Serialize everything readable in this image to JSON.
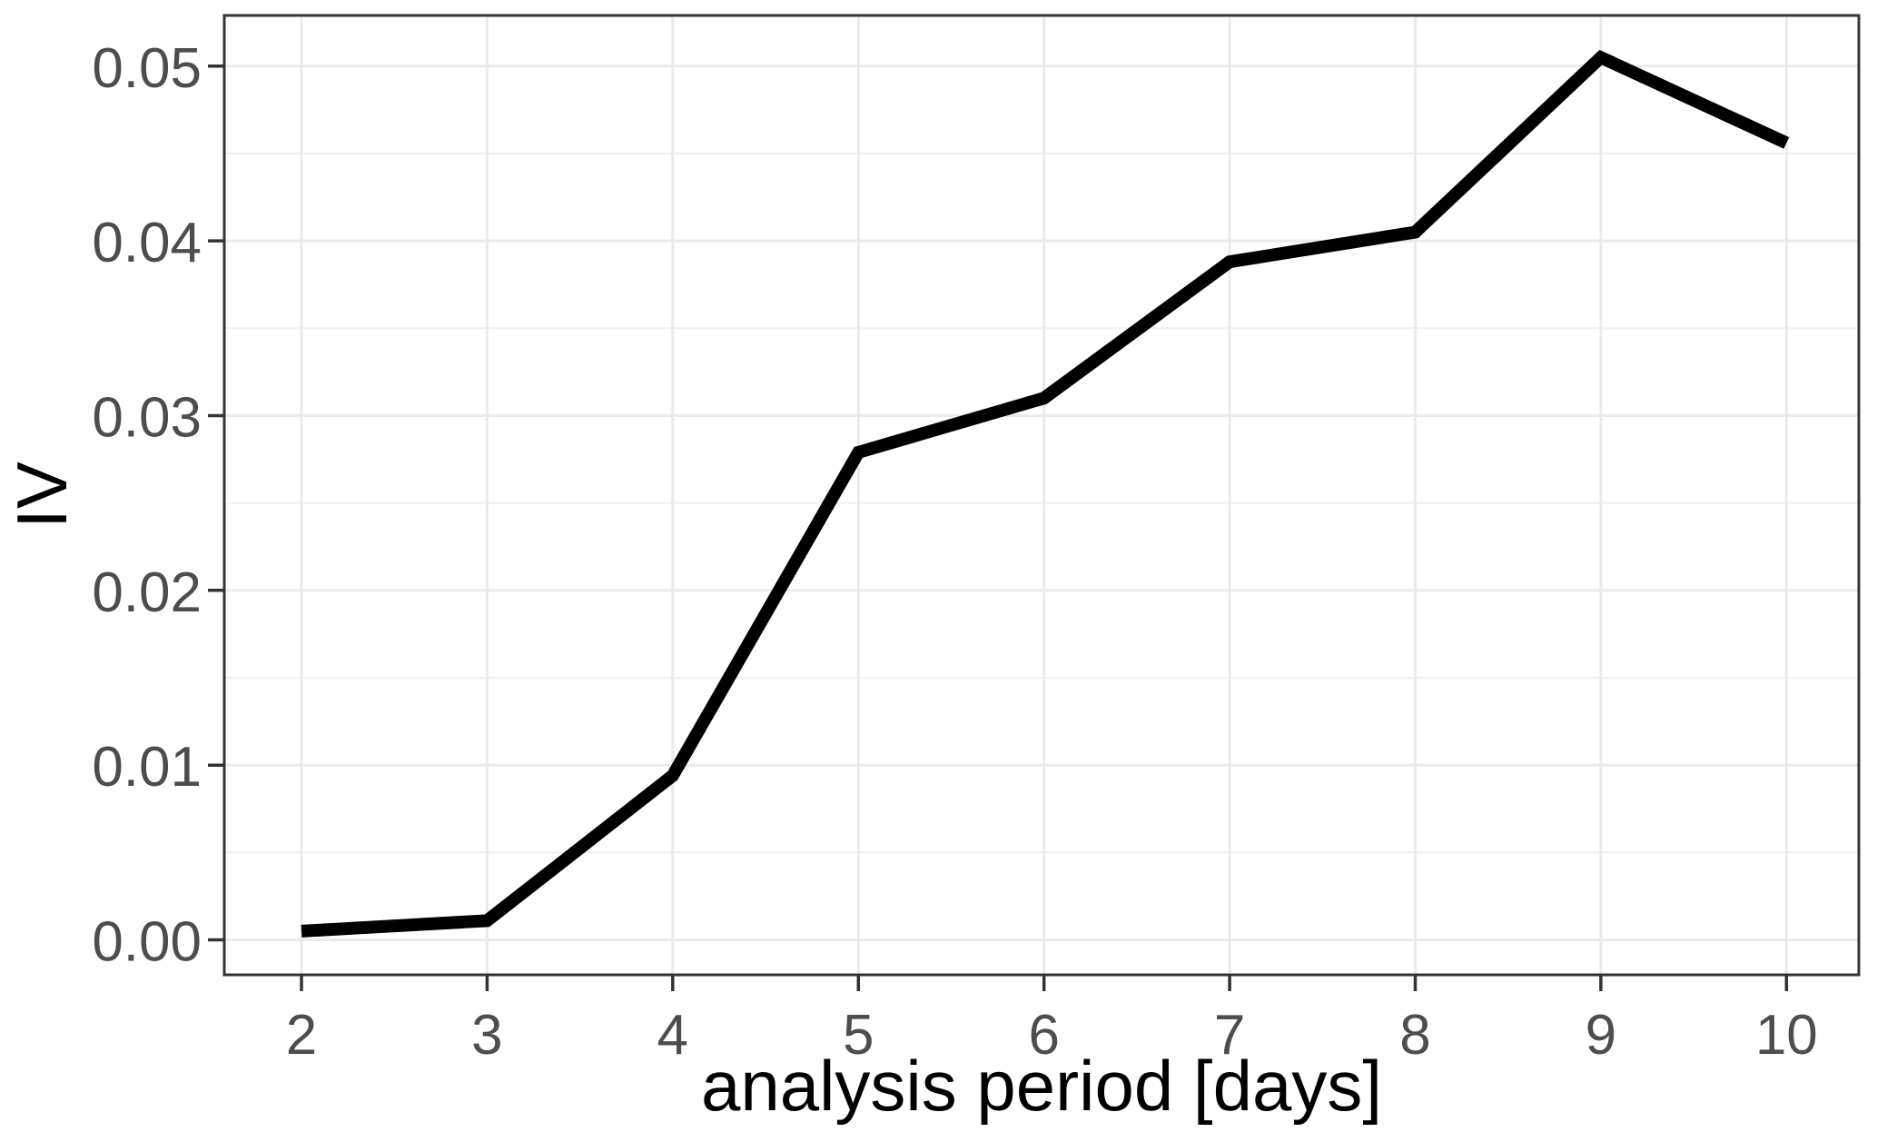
{
  "chart_data": {
    "type": "line",
    "title": "",
    "xlabel": "analysis period [days]",
    "ylabel": "IV",
    "x": [
      2,
      3,
      4,
      5,
      6,
      7,
      8,
      9,
      10
    ],
    "series": [
      {
        "name": "IV",
        "values": [
          0.0005,
          0.0011,
          0.0094,
          0.0279,
          0.031,
          0.0388,
          0.0405,
          0.0505,
          0.0456
        ]
      }
    ],
    "xlim": [
      1.584,
      10.39
    ],
    "ylim": [
      -0.002,
      0.0529
    ],
    "x_ticks": [
      2,
      3,
      4,
      5,
      6,
      7,
      8,
      9,
      10
    ],
    "x_tick_labels": [
      "2",
      "3",
      "4",
      "5",
      "6",
      "7",
      "8",
      "9",
      "10"
    ],
    "y_ticks": [
      0,
      0.01,
      0.02,
      0.03,
      0.04,
      0.05
    ],
    "y_tick_labels": [
      "0.00",
      "0.01",
      "0.02",
      "0.03",
      "0.04",
      "0.05"
    ],
    "y_minor_gridlines": [
      0.005,
      0.015,
      0.025,
      0.035,
      0.045
    ],
    "grid": "horizontal major+minor, vertical major only",
    "legend": "none",
    "colors": {
      "line": "#000000",
      "grid_major": "#EBEBEB",
      "grid_minor": "#F0F0F0",
      "panel_border": "#333333",
      "tick_mark": "#333333",
      "tick_label": "#4D4D4D",
      "axis_title": "#000000",
      "background": "#FFFFFF"
    }
  }
}
